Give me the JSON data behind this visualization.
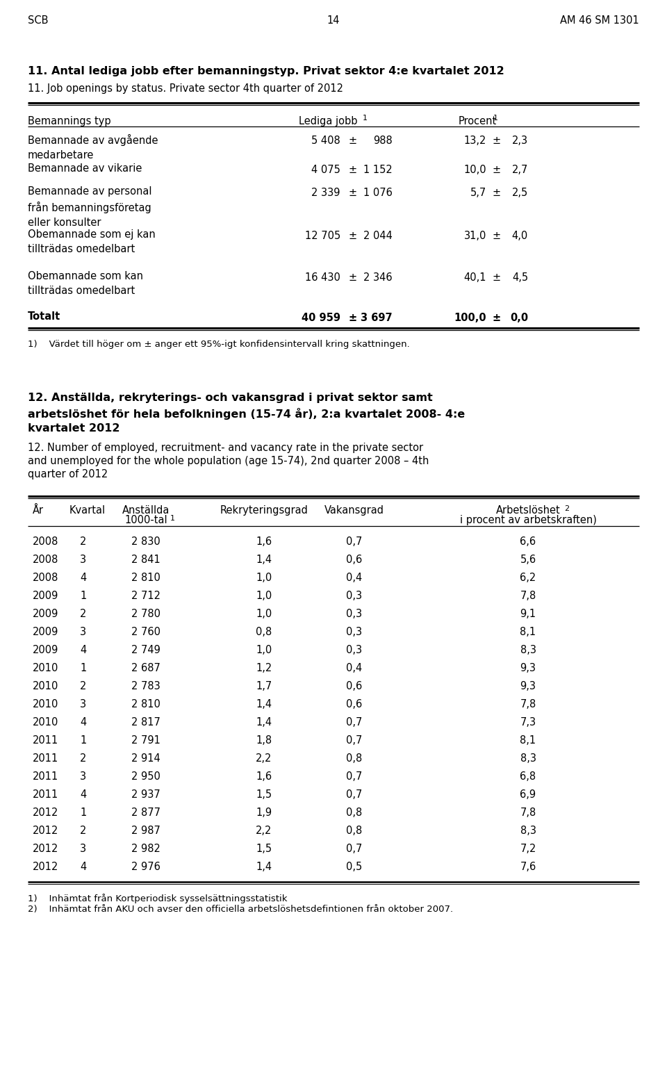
{
  "header_left": "SCB",
  "header_center": "14",
  "header_right": "AM 46 SM 1301",
  "section1_title_bold": "11. Antal lediga jobb efter bemanningstyp. Privat sektor 4:e kvartalet 2012",
  "section1_title_normal": "11. Job openings by status. Private sector 4th quarter of 2012",
  "table1_rows": [
    [
      "Bemannade av avgående\nmedarbetare",
      "5 408",
      "±",
      "988",
      "13,2",
      "±",
      "2,3"
    ],
    [
      "Bemannade av vikarie",
      "4 075",
      "±",
      "1 152",
      "10,0",
      "±",
      "2,7"
    ],
    [
      "Bemannade av personal\nfrån bemanningsföretag\neller konsulter",
      "2 339",
      "±",
      "1 076",
      "5,7",
      "±",
      "2,5"
    ],
    [
      "Obemannade som ej kan\ntillträdas omedelbart",
      "12 705",
      "±",
      "2 044",
      "31,0",
      "±",
      "4,0"
    ],
    [
      "Obemannade som kan\ntillträdas omedelbart",
      "16 430",
      "±",
      "2 346",
      "40,1",
      "±",
      "4,5"
    ],
    [
      "Totalt",
      "40 959",
      "±",
      "3 697",
      "100,0",
      "±",
      "0,0"
    ]
  ],
  "table1_totalt_index": 5,
  "footnote1": "1)    Värdet till höger om ± anger ett 95%-igt konfidensintervall kring skattningen.",
  "section2_title_bold_lines": [
    "12. Anställda, rekryterings- och vakansgrad i privat sektor samt",
    "arbetslöshet för hela befolkningen (15-74 år), 2:a kvartalet 2008- 4:e",
    "kvartalet 2012"
  ],
  "section2_title_normal_lines": [
    "12. Number of employed, recruitment- and vacancy rate in the private sector",
    "and unemployed for the whole population (age 15-74), 2nd quarter 2008 – 4th",
    "quarter of 2012"
  ],
  "table2_rows": [
    [
      "2008",
      "2",
      "2 830",
      "1,6",
      "0,7",
      "6,6"
    ],
    [
      "2008",
      "3",
      "2 841",
      "1,4",
      "0,6",
      "5,6"
    ],
    [
      "2008",
      "4",
      "2 810",
      "1,0",
      "0,4",
      "6,2"
    ],
    [
      "2009",
      "1",
      "2 712",
      "1,0",
      "0,3",
      "7,8"
    ],
    [
      "2009",
      "2",
      "2 780",
      "1,0",
      "0,3",
      "9,1"
    ],
    [
      "2009",
      "3",
      "2 760",
      "0,8",
      "0,3",
      "8,1"
    ],
    [
      "2009",
      "4",
      "2 749",
      "1,0",
      "0,3",
      "8,3"
    ],
    [
      "2010",
      "1",
      "2 687",
      "1,2",
      "0,4",
      "9,3"
    ],
    [
      "2010",
      "2",
      "2 783",
      "1,7",
      "0,6",
      "9,3"
    ],
    [
      "2010",
      "3",
      "2 810",
      "1,4",
      "0,6",
      "7,8"
    ],
    [
      "2010",
      "4",
      "2 817",
      "1,4",
      "0,7",
      "7,3"
    ],
    [
      "2011",
      "1",
      "2 791",
      "1,8",
      "0,7",
      "8,1"
    ],
    [
      "2011",
      "2",
      "2 914",
      "2,2",
      "0,8",
      "8,3"
    ],
    [
      "2011",
      "3",
      "2 950",
      "1,6",
      "0,7",
      "6,8"
    ],
    [
      "2011",
      "4",
      "2 937",
      "1,5",
      "0,7",
      "6,9"
    ],
    [
      "2012",
      "1",
      "2 877",
      "1,9",
      "0,8",
      "7,8"
    ],
    [
      "2012",
      "2",
      "2 987",
      "2,2",
      "0,8",
      "8,3"
    ],
    [
      "2012",
      "3",
      "2 982",
      "1,5",
      "0,7",
      "7,2"
    ],
    [
      "2012",
      "4",
      "2 976",
      "1,4",
      "0,5",
      "7,6"
    ]
  ],
  "footnote2_1": "1)    Inhämtat från Kortperiodisk sysselsättningsstatistik",
  "footnote2_2": "2)    Inhämtat från AKU och avser den officiella arbetslöshetsdefintionen från oktober 2007."
}
